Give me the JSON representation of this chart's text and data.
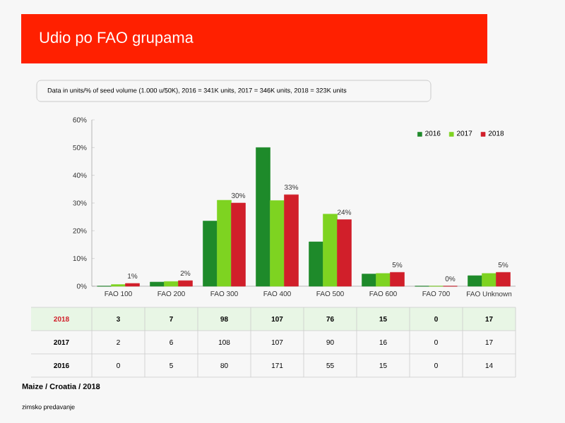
{
  "chart_data": {
    "type": "bar",
    "title": "Udio po FAO grupama",
    "subtitle": "Data in units/% of seed volume (1.000 u/50K), 2016 = 341K units, 2017 = 346K units, 2018 = 323K units",
    "categories": [
      "FAO 100",
      "FAO 200",
      "FAO 300",
      "FAO 400",
      "FAO 500",
      "FAO 600",
      "FAO 700",
      "FAO Unknown"
    ],
    "series": [
      {
        "name": "2016",
        "color": "#1e8a2a",
        "values": [
          0,
          1.5,
          23.5,
          50,
          16,
          4.4,
          0,
          3.8
        ]
      },
      {
        "name": "2017",
        "color": "#7ed321",
        "values": [
          0.6,
          1.7,
          31,
          30.9,
          26,
          4.6,
          0,
          4.6
        ]
      },
      {
        "name": "2018",
        "color": "#d11f2a",
        "values": [
          1,
          2,
          30,
          33,
          24,
          5,
          0,
          5
        ],
        "value_labels": [
          "1%",
          "2%",
          "30%",
          "33%",
          "24%",
          "5%",
          "0%",
          "5%"
        ]
      }
    ],
    "ylim": [
      0,
      60
    ],
    "yticks": [
      {
        "value": 0,
        "label": "0%"
      },
      {
        "value": 10,
        "label": "10%"
      },
      {
        "value": 20,
        "label": "20%"
      },
      {
        "value": 30,
        "label": "30%"
      },
      {
        "value": 40,
        "label": "40%"
      },
      {
        "value": 50,
        "label": "50%"
      },
      {
        "value": 60,
        "label": "60%"
      }
    ],
    "legend": "top right",
    "annotations": [
      "3",
      "7",
      "98",
      "107",
      "76",
      "15",
      "0",
      "17",
      "2",
      "6",
      "108",
      "107",
      "90",
      "16",
      "0",
      "17",
      "0",
      "5",
      "80",
      "171",
      "55",
      "15",
      "0",
      "14",
      "Maize / Croatia / 2018",
      "zimsko predavanje"
    ]
  }
}
